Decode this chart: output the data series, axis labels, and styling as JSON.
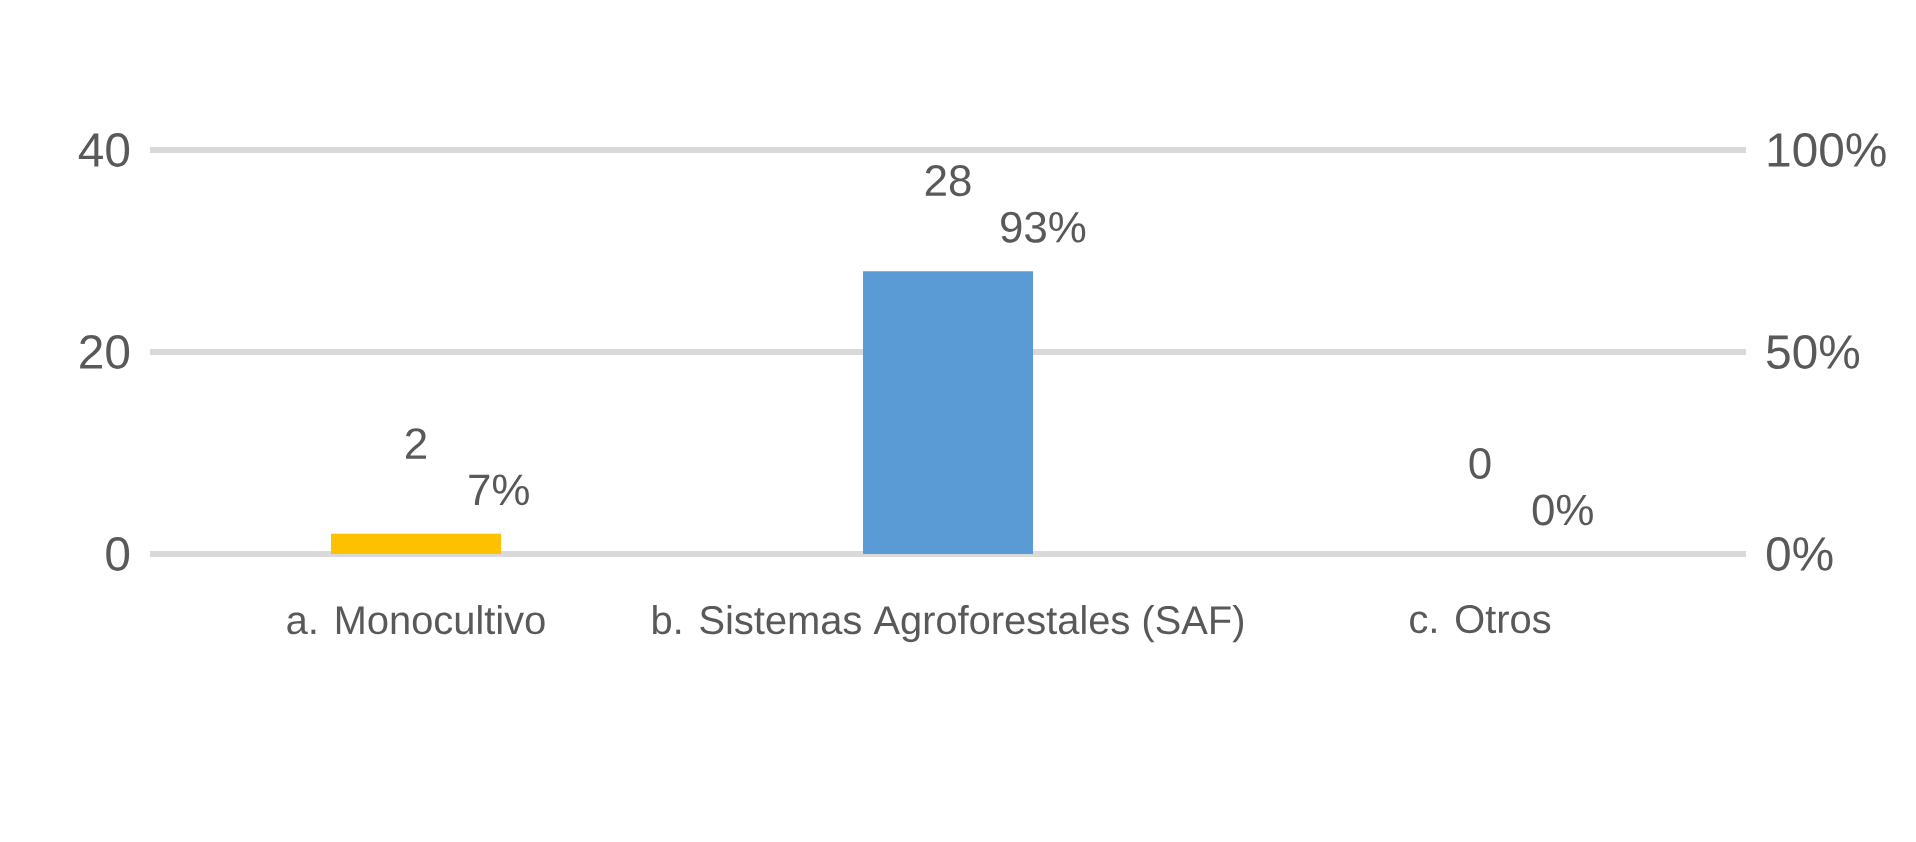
{
  "chart_data": {
    "type": "bar",
    "categories": [
      "a. Monocultivo",
      "b. Sistemas Agroforestales (SAF)",
      "c. Otros"
    ],
    "ylim": [
      0,
      40
    ],
    "yticks": [
      0,
      20,
      40
    ],
    "y2lim": [
      0,
      100
    ],
    "y2ticks": [
      {
        "value": 0,
        "label": "0%"
      },
      {
        "value": 50,
        "label": "50%"
      },
      {
        "value": 100,
        "label": "100%"
      }
    ],
    "grid": "y",
    "series": [
      {
        "colors": [
          "#ffc000",
          "#5b9bd5",
          "#a5a5a5"
        ],
        "values": [
          2,
          28,
          0
        ],
        "value_labels": [
          "2",
          "28",
          "0"
        ]
      }
    ],
    "annotations": [
      "7%",
      "93%",
      "0%"
    ]
  }
}
